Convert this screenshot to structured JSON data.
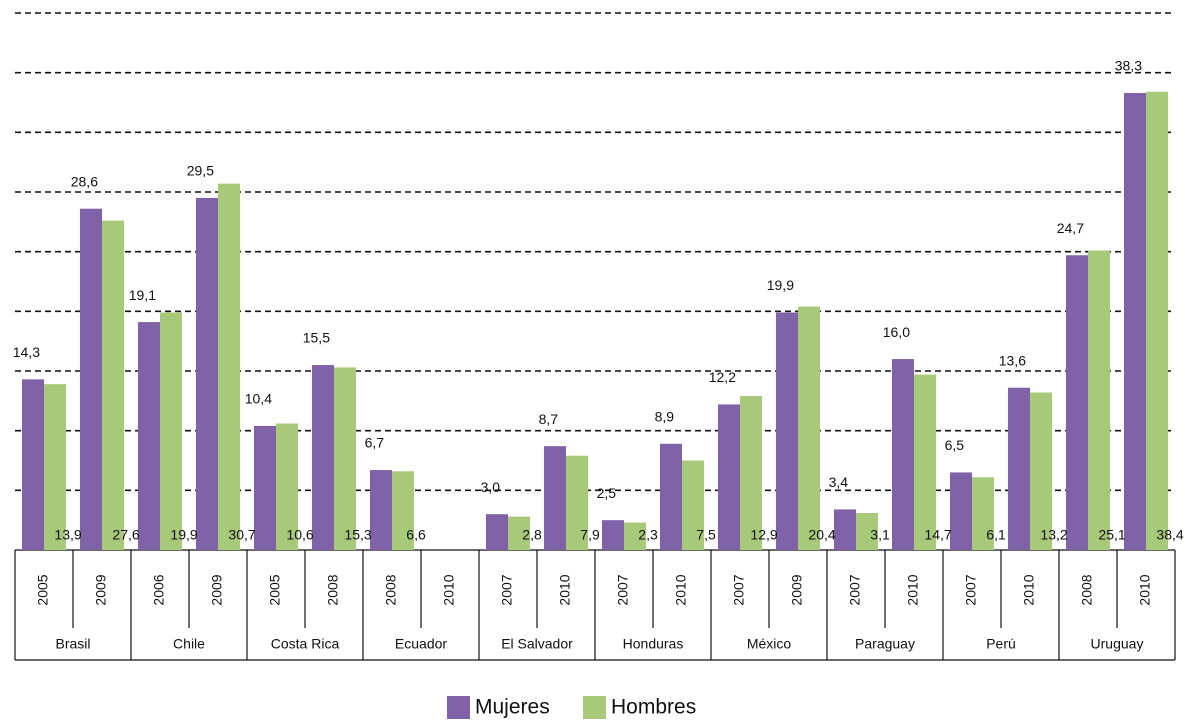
{
  "chart_data": {
    "type": "bar",
    "categories": [
      "2005",
      "2009",
      "2006",
      "2009",
      "2005",
      "2008",
      "2008",
      "2010",
      "2007",
      "2010",
      "2007",
      "2010",
      "2007",
      "2009",
      "2007",
      "2010",
      "2007",
      "2010",
      "2008",
      "2010"
    ],
    "groups": [
      "Brasil",
      "Chile",
      "Costa Rica",
      "Ecuador",
      "El Salvador",
      "Honduras",
      "México",
      "Paraguay",
      "Perú",
      "Uruguay"
    ],
    "series": [
      {
        "name": "Mujeres",
        "color": "#7f62a8",
        "values": [
          14.3,
          28.6,
          19.1,
          29.5,
          10.4,
          15.5,
          6.7,
          null,
          3.0,
          8.7,
          2.5,
          8.9,
          12.2,
          19.9,
          3.4,
          16.0,
          6.5,
          13.6,
          24.7,
          38.3
        ],
        "value_labels": [
          "14,3",
          "28,6",
          "19,1",
          "29,5",
          "10,4",
          "15,5",
          "6,7",
          null,
          "3,0",
          "8,7",
          "2,5",
          "8,9",
          "12,2",
          "19,9",
          "3,4",
          "16,0",
          "6,5",
          "13,6",
          "24,7",
          "38,3"
        ]
      },
      {
        "name": "Hombres",
        "color": "#a9c97a",
        "values": [
          13.9,
          27.6,
          19.9,
          30.7,
          10.6,
          15.3,
          6.6,
          null,
          2.8,
          7.9,
          2.3,
          7.5,
          12.9,
          20.4,
          3.1,
          14.7,
          6.1,
          13.2,
          25.1,
          38.4
        ],
        "value_labels": [
          "13,9",
          "27,6",
          "19,9",
          "30,7",
          "10,6",
          "15,3",
          "6,6",
          null,
          "2,8",
          "7,9",
          "2,3",
          "7,5",
          "12,9",
          "20,4",
          "3,1",
          "14,7",
          "6,1",
          "13,2",
          "25,1",
          "38,4"
        ]
      }
    ],
    "ylim": [
      0,
      45
    ],
    "yticks": [
      0,
      5,
      10,
      15,
      20,
      25,
      30,
      35,
      40,
      45
    ],
    "grid": true,
    "legend": "bottom"
  }
}
